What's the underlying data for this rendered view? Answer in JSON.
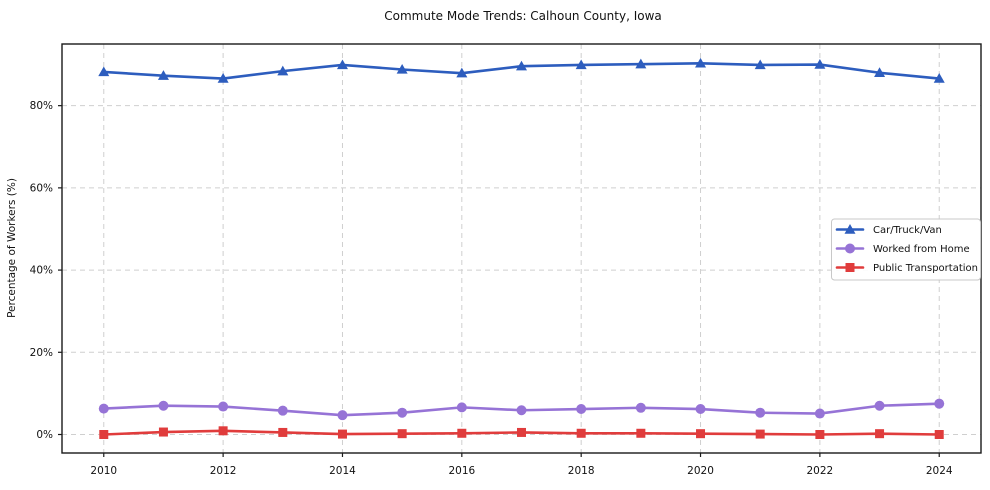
{
  "title": "Commute Mode Trends: Calhoun County, Iowa",
  "chart_data": {
    "type": "line",
    "title": "Commute Mode Trends: Calhoun County, Iowa",
    "xlabel": "",
    "ylabel": "Percentage of Workers (%)",
    "x": [
      2010,
      2011,
      2012,
      2013,
      2014,
      2015,
      2016,
      2017,
      2018,
      2019,
      2020,
      2021,
      2022,
      2023,
      2024
    ],
    "series": [
      {
        "name": "Car/Truck/Van",
        "color": "#2d5dbe",
        "marker": "triangle",
        "values": [
          88.2,
          87.3,
          86.6,
          88.4,
          89.9,
          88.8,
          87.9,
          89.6,
          89.9,
          90.1,
          90.3,
          89.9,
          90.0,
          88.0,
          86.6
        ]
      },
      {
        "name": "Worked from Home",
        "color": "#9673d6",
        "marker": "circle",
        "values": [
          6.3,
          7.0,
          6.8,
          5.8,
          4.7,
          5.3,
          6.6,
          5.9,
          6.2,
          6.5,
          6.2,
          5.3,
          5.1,
          7.0,
          7.5
        ]
      },
      {
        "name": "Public Transportation",
        "color": "#e03c3c",
        "marker": "square",
        "values": [
          0.0,
          0.6,
          0.9,
          0.5,
          0.1,
          0.2,
          0.3,
          0.5,
          0.3,
          0.3,
          0.2,
          0.1,
          0.0,
          0.2,
          0.0
        ]
      }
    ],
    "xticks": [
      2010,
      2012,
      2014,
      2016,
      2018,
      2020,
      2022,
      2024
    ],
    "yticks": [
      0,
      20,
      40,
      60,
      80
    ],
    "ytick_labels": [
      "0%",
      "20%",
      "40%",
      "60%",
      "80%"
    ],
    "xlim": [
      2009.3,
      2024.7
    ],
    "ylim": [
      -4.5,
      95
    ],
    "grid": true,
    "grid_color": "#cfcfcf",
    "spine_color": "#1a1a1a",
    "legend": {
      "position": "center right",
      "entries": [
        "Car/Truck/Van",
        "Worked from Home",
        "Public Transportation"
      ]
    }
  }
}
